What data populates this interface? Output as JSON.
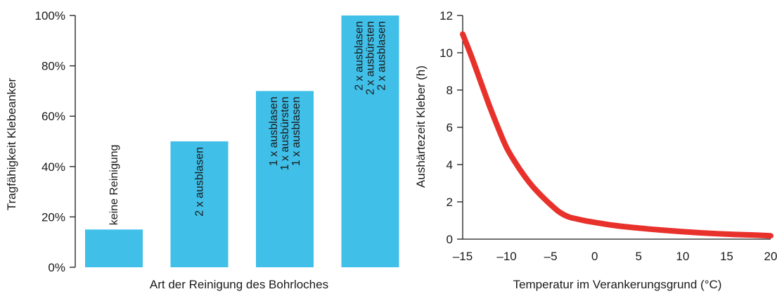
{
  "chart_data": [
    {
      "type": "bar",
      "categories": [
        [
          "keine Reinigung"
        ],
        [
          "2 x ausblasen"
        ],
        [
          "1 x ausblasen",
          "1 x ausbürsten",
          "1 x ausblasen"
        ],
        [
          "2 x ausblasen",
          "2 x ausbürsten",
          "2 x ausblasen"
        ]
      ],
      "values": [
        15,
        50,
        70,
        100
      ],
      "ylim": [
        0,
        100
      ],
      "yticks": [
        "0%",
        "20%",
        "40%",
        "60%",
        "80%",
        "100%"
      ],
      "ytick_values": [
        0,
        20,
        40,
        60,
        80,
        100
      ],
      "xlabel": "Art der Reinigung des Bohrloches",
      "ylabel": "Tragfähigkeit Klebeanker",
      "color": "#40bfe8"
    },
    {
      "type": "line",
      "x": [
        -15,
        -14,
        -13,
        -12,
        -11,
        -10,
        -9,
        -8,
        -7,
        -6,
        -5,
        -4,
        -3,
        -2,
        -1,
        0,
        2,
        4,
        6,
        8,
        10,
        12,
        14,
        16,
        18,
        20
      ],
      "y": [
        11,
        9.8,
        8.5,
        7.2,
        6.0,
        4.9,
        4.1,
        3.4,
        2.8,
        2.3,
        1.85,
        1.45,
        1.2,
        1.08,
        0.98,
        0.9,
        0.75,
        0.64,
        0.55,
        0.47,
        0.4,
        0.34,
        0.29,
        0.25,
        0.22,
        0.18
      ],
      "xlim": [
        -15,
        20
      ],
      "ylim": [
        0,
        12
      ],
      "xticks": [
        "–15",
        "–10",
        "–5",
        "0",
        "5",
        "10",
        "15",
        "20"
      ],
      "xtick_values": [
        -15,
        -10,
        -5,
        0,
        5,
        10,
        15,
        20
      ],
      "yticks": [
        "0",
        "2",
        "4",
        "6",
        "8",
        "10",
        "12"
      ],
      "ytick_values": [
        0,
        2,
        4,
        6,
        8,
        10,
        12
      ],
      "xlabel": "Temperatur im Verankerungsgrund (°C)",
      "ylabel": "Aushärtezeit Kleber (h)",
      "color": "#e8312b"
    }
  ]
}
